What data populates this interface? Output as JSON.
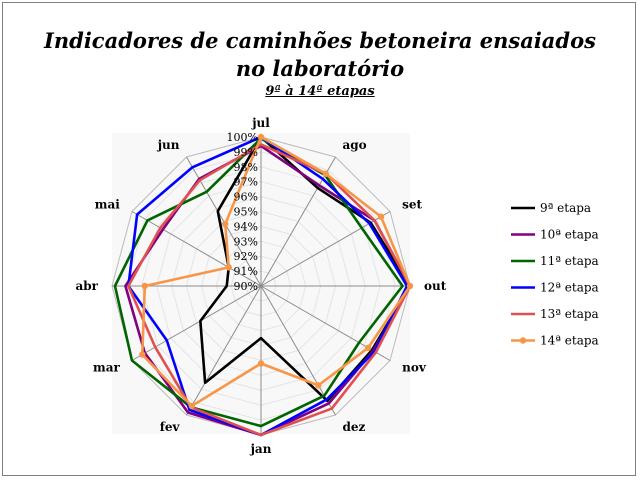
{
  "chart_data": {
    "type": "radar",
    "title": "Indicadores de caminhões betoneira ensaiados",
    "title_line2": "no laboratório",
    "subtitle": "9ª à 14ª etapas",
    "categories": [
      "jul",
      "ago",
      "set",
      "out",
      "nov",
      "dez",
      "jan",
      "fev",
      "mar",
      "abr",
      "mai",
      "jun"
    ],
    "rlim": [
      90,
      100
    ],
    "tick_labels": [
      "90%",
      "91%",
      "92%",
      "93%",
      "94%",
      "95%",
      "96%",
      "97%",
      "98%",
      "99%",
      "100%"
    ],
    "tick_values": [
      90,
      91,
      92,
      93,
      94,
      95,
      96,
      97,
      98,
      99,
      100
    ],
    "legend_position": "right",
    "series": [
      {
        "name": "9ª etapa",
        "color": "#000000",
        "marker": false,
        "values": [
          100,
          97.6,
          98.5,
          100,
          98.6,
          98.9,
          93.5,
          97.5,
          94.7,
          92.3,
          92.5,
          95.8
        ]
      },
      {
        "name": "10ª etapa",
        "color": "#800080",
        "marker": false,
        "values": [
          99.4,
          97.8,
          98.8,
          100,
          98.7,
          99.1,
          100,
          99.8,
          99.0,
          99.1,
          97.6,
          98.3
        ]
      },
      {
        "name": "11ª etapa",
        "color": "#006400",
        "marker": false,
        "values": [
          99.9,
          98.6,
          97.8,
          99.5,
          97.6,
          98.5,
          99.4,
          99.4,
          100,
          99.8,
          98.8,
          97.3
        ]
      },
      {
        "name": "12ª etapa",
        "color": "#0000ff",
        "marker": false,
        "values": [
          100,
          98.3,
          98.4,
          99.8,
          98.8,
          98.8,
          100,
          99.6,
          97.3,
          98.9,
          99.6,
          99.2
        ]
      },
      {
        "name": "13ª etapa",
        "color": "#e05050",
        "marker": false,
        "values": [
          99.5,
          98.7,
          98.8,
          100,
          98.9,
          99.5,
          100,
          99.4,
          98.2,
          98.9,
          97.8,
          98.2
        ]
      },
      {
        "name": "14ª etapa",
        "color": "#f79646",
        "marker": true,
        "values": [
          100,
          98.7,
          99.3,
          100,
          98.3,
          97.7,
          95.2,
          99.3,
          99.2,
          97.8,
          92.5,
          94.8
        ]
      }
    ]
  }
}
